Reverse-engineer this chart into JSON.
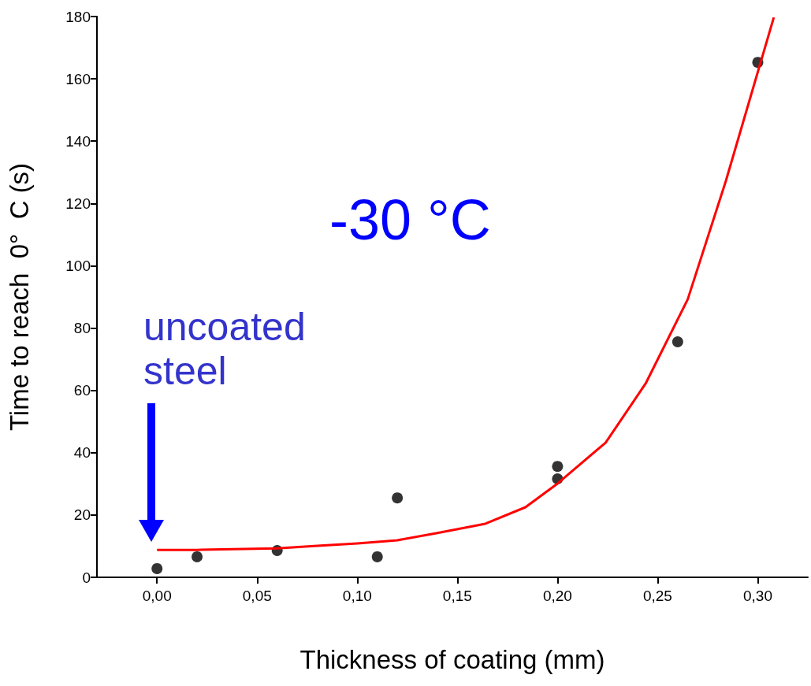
{
  "chart_data": {
    "type": "scatter",
    "xlabel": "Thickness of coating (mm)",
    "ylabel": "Time to reach  0°  C (s)",
    "xlim": [
      -0.03,
      0.325
    ],
    "ylim": [
      0,
      180
    ],
    "xticks": [
      {
        "value": 0,
        "label": "0,00"
      },
      {
        "value": 0.05,
        "label": "0,05"
      },
      {
        "value": 0.1,
        "label": "0,10"
      },
      {
        "value": 0.15,
        "label": "0,15"
      },
      {
        "value": 0.2,
        "label": "0,20"
      },
      {
        "value": 0.25,
        "label": "0,25"
      },
      {
        "value": 0.3,
        "label": "0,30"
      }
    ],
    "yticks": [
      0,
      20,
      40,
      60,
      80,
      100,
      120,
      140,
      160,
      180
    ],
    "series": [
      {
        "color": "#000000",
        "marker": "circle",
        "x": [
          0,
          0.02,
          0.06,
          0.11,
          0.12,
          0.2,
          0.2,
          0.26,
          0.3
        ],
        "values": [
          2.8,
          6.6,
          8.6,
          6.6,
          25.5,
          35.6,
          31.6,
          75.6,
          165.3
        ]
      },
      {
        "type": "line",
        "color": "#ff0000",
        "marker": "none",
        "x": [
          0,
          0.02,
          0.06,
          0.08,
          0.1,
          0.12,
          0.14,
          0.164,
          0.184,
          0.2,
          0.224,
          0.244,
          0.265,
          0.284,
          0.308
        ],
        "values": [
          8.8,
          8.8,
          9.3,
          10.1,
          10.9,
          11.9,
          14.2,
          17.2,
          22.5,
          30.1,
          43.2,
          62.2,
          89.2,
          127.1,
          179.7
        ]
      }
    ],
    "annotations": [
      "-30 °C",
      "uncoated steel"
    ],
    "grid": false
  }
}
